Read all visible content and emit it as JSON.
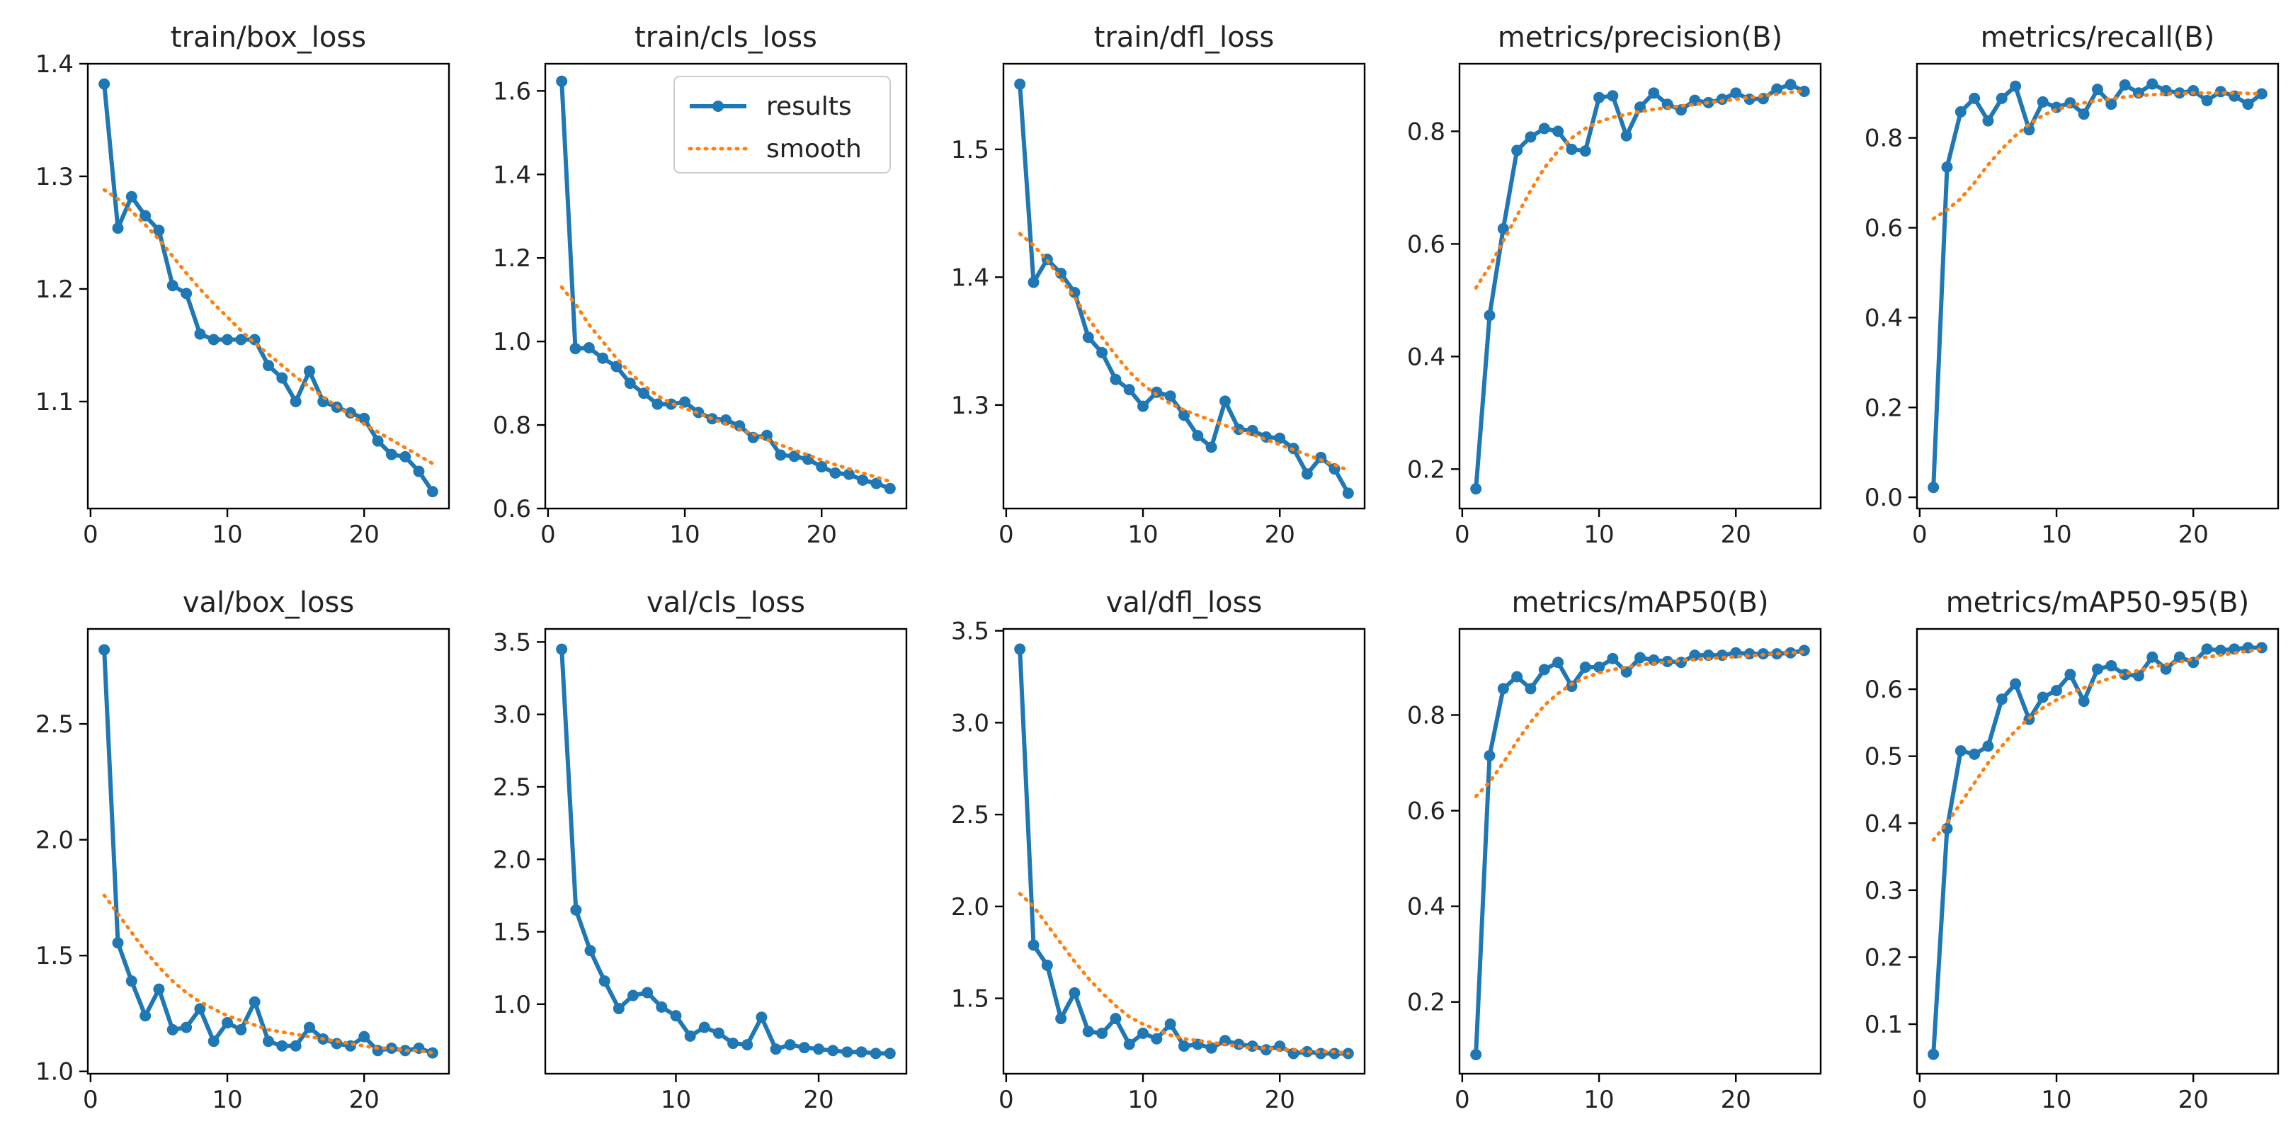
{
  "legend": {
    "results_label": "results",
    "smooth_label": "smooth",
    "results_color": "#1f77b4",
    "smooth_color": "#ff7f0e"
  },
  "chart_data": [
    {
      "type": "line",
      "title": "train/box_loss",
      "xlabel": "",
      "ylabel": "",
      "xlim": [
        -0.2,
        26.2
      ],
      "ylim": [
        1.005,
        1.4
      ],
      "xticks": [
        0,
        10,
        20
      ],
      "yticks": [
        1.1,
        1.2,
        1.3,
        1.4
      ],
      "ytick_labels": [
        "1.1",
        "1.2",
        "1.3",
        "1.4"
      ],
      "x": [
        1,
        2,
        3,
        4,
        5,
        6,
        7,
        8,
        9,
        10,
        11,
        12,
        13,
        14,
        15,
        16,
        17,
        18,
        19,
        20,
        21,
        22,
        23,
        24,
        25
      ],
      "series": [
        {
          "name": "results",
          "values": [
            1.382,
            1.254,
            1.282,
            1.265,
            1.252,
            1.203,
            1.196,
            1.16,
            1.155,
            1.155,
            1.155,
            1.155,
            1.132,
            1.121,
            1.1,
            1.127,
            1.1,
            1.095,
            1.09,
            1.085,
            1.065,
            1.053,
            1.051,
            1.038,
            1.02
          ]
        },
        {
          "name": "smooth",
          "values": [
            1.288,
            1.28,
            1.269,
            1.257,
            1.244,
            1.229,
            1.214,
            1.2,
            1.187,
            1.175,
            1.163,
            1.152,
            1.142,
            1.132,
            1.122,
            1.113,
            1.104,
            1.096,
            1.088,
            1.08,
            1.073,
            1.066,
            1.059,
            1.052,
            1.045
          ]
        }
      ]
    },
    {
      "type": "line",
      "title": "train/cls_loss",
      "xlabel": "",
      "ylabel": "",
      "xlim": [
        -0.2,
        26.2
      ],
      "ylim": [
        0.6,
        1.665
      ],
      "xticks": [
        0,
        10,
        20
      ],
      "yticks": [
        0.6,
        0.8,
        1.0,
        1.2,
        1.4,
        1.6
      ],
      "ytick_labels": [
        "0.6",
        "0.8",
        "1.0",
        "1.2",
        "1.4",
        "1.6"
      ],
      "x": [
        1,
        2,
        3,
        4,
        5,
        6,
        7,
        8,
        9,
        10,
        11,
        12,
        13,
        14,
        15,
        16,
        17,
        18,
        19,
        20,
        21,
        22,
        23,
        24,
        25
      ],
      "series": [
        {
          "name": "results",
          "values": [
            1.623,
            0.983,
            0.985,
            0.96,
            0.94,
            0.9,
            0.876,
            0.85,
            0.85,
            0.855,
            0.83,
            0.815,
            0.812,
            0.798,
            0.77,
            0.775,
            0.728,
            0.725,
            0.718,
            0.7,
            0.685,
            0.682,
            0.668,
            0.66,
            0.648
          ]
        },
        {
          "name": "smooth",
          "values": [
            1.13,
            1.09,
            1.04,
            1.0,
            0.96,
            0.925,
            0.895,
            0.87,
            0.852,
            0.84,
            0.828,
            0.815,
            0.803,
            0.79,
            0.778,
            0.765,
            0.752,
            0.74,
            0.728,
            0.716,
            0.705,
            0.695,
            0.685,
            0.675,
            0.665
          ]
        }
      ]
    },
    {
      "type": "line",
      "title": "train/dfl_loss",
      "xlabel": "",
      "ylabel": "",
      "xlim": [
        -0.2,
        26.2
      ],
      "ylim": [
        1.219,
        1.567
      ],
      "xticks": [
        0,
        10,
        20
      ],
      "yticks": [
        1.3,
        1.4,
        1.5
      ],
      "ytick_labels": [
        "1.3",
        "1.4",
        "1.5"
      ],
      "x": [
        1,
        2,
        3,
        4,
        5,
        6,
        7,
        8,
        9,
        10,
        11,
        12,
        13,
        14,
        15,
        16,
        17,
        18,
        19,
        20,
        21,
        22,
        23,
        24,
        25
      ],
      "series": [
        {
          "name": "results",
          "values": [
            1.551,
            1.396,
            1.414,
            1.403,
            1.388,
            1.353,
            1.341,
            1.32,
            1.312,
            1.299,
            1.31,
            1.307,
            1.292,
            1.276,
            1.267,
            1.303,
            1.281,
            1.28,
            1.275,
            1.274,
            1.266,
            1.246,
            1.259,
            1.25,
            1.231
          ]
        },
        {
          "name": "smooth",
          "values": [
            1.434,
            1.425,
            1.413,
            1.399,
            1.384,
            1.368,
            1.353,
            1.339,
            1.326,
            1.316,
            1.308,
            1.301,
            1.296,
            1.292,
            1.288,
            1.284,
            1.28,
            1.277,
            1.273,
            1.269,
            1.265,
            1.261,
            1.257,
            1.253,
            1.249
          ]
        }
      ]
    },
    {
      "type": "line",
      "title": "metrics/precision(B)",
      "xlabel": "",
      "ylabel": "",
      "xlim": [
        -0.2,
        26.2
      ],
      "ylim": [
        0.13,
        0.92
      ],
      "xticks": [
        0,
        10,
        20
      ],
      "yticks": [
        0.2,
        0.4,
        0.6,
        0.8
      ],
      "ytick_labels": [
        "0.2",
        "0.4",
        "0.6",
        "0.8"
      ],
      "x": [
        1,
        2,
        3,
        4,
        5,
        6,
        7,
        8,
        9,
        10,
        11,
        12,
        13,
        14,
        15,
        16,
        17,
        18,
        19,
        20,
        21,
        22,
        23,
        24,
        25
      ],
      "series": [
        {
          "name": "results",
          "values": [
            0.165,
            0.473,
            0.627,
            0.766,
            0.79,
            0.805,
            0.8,
            0.768,
            0.765,
            0.86,
            0.863,
            0.792,
            0.843,
            0.868,
            0.848,
            0.838,
            0.855,
            0.851,
            0.857,
            0.868,
            0.857,
            0.858,
            0.875,
            0.883,
            0.871
          ]
        },
        {
          "name": "smooth",
          "values": [
            0.522,
            0.56,
            0.605,
            0.65,
            0.695,
            0.735,
            0.765,
            0.788,
            0.805,
            0.817,
            0.825,
            0.83,
            0.835,
            0.839,
            0.842,
            0.845,
            0.848,
            0.851,
            0.854,
            0.857,
            0.86,
            0.863,
            0.866,
            0.869,
            0.872
          ]
        }
      ]
    },
    {
      "type": "line",
      "title": "metrics/recall(B)",
      "xlabel": "",
      "ylabel": "",
      "xlim": [
        -0.2,
        26.2
      ],
      "ylim": [
        -0.025,
        0.965
      ],
      "xticks": [
        0,
        10,
        20
      ],
      "yticks": [
        0.0,
        0.2,
        0.4,
        0.6,
        0.8
      ],
      "ytick_labels": [
        "0.0",
        "0.2",
        "0.4",
        "0.6",
        "0.8"
      ],
      "x": [
        1,
        2,
        3,
        4,
        5,
        6,
        7,
        8,
        9,
        10,
        11,
        12,
        13,
        14,
        15,
        16,
        17,
        18,
        19,
        20,
        21,
        22,
        23,
        24,
        25
      ],
      "series": [
        {
          "name": "results",
          "values": [
            0.022,
            0.735,
            0.858,
            0.888,
            0.838,
            0.888,
            0.915,
            0.818,
            0.88,
            0.868,
            0.878,
            0.853,
            0.908,
            0.875,
            0.918,
            0.9,
            0.92,
            0.905,
            0.9,
            0.905,
            0.883,
            0.903,
            0.893,
            0.875,
            0.898
          ]
        },
        {
          "name": "smooth",
          "values": [
            0.62,
            0.64,
            0.665,
            0.7,
            0.74,
            0.775,
            0.805,
            0.83,
            0.85,
            0.863,
            0.872,
            0.878,
            0.883,
            0.887,
            0.891,
            0.894,
            0.896,
            0.898,
            0.899,
            0.9,
            0.9,
            0.9,
            0.9,
            0.899,
            0.898
          ]
        }
      ]
    },
    {
      "type": "line",
      "title": "val/box_loss",
      "xlabel": "",
      "ylabel": "",
      "xlim": [
        -0.2,
        26.2
      ],
      "ylim": [
        0.99,
        2.91
      ],
      "xticks": [
        0,
        10,
        20
      ],
      "yticks": [
        1.0,
        1.5,
        2.0,
        2.5
      ],
      "ytick_labels": [
        "1.0",
        "1.5",
        "2.0",
        "2.5"
      ],
      "x": [
        1,
        2,
        3,
        4,
        5,
        6,
        7,
        8,
        9,
        10,
        11,
        12,
        13,
        14,
        15,
        16,
        17,
        18,
        19,
        20,
        21,
        22,
        23,
        24,
        25
      ],
      "series": [
        {
          "name": "results",
          "values": [
            2.82,
            1.555,
            1.39,
            1.24,
            1.355,
            1.18,
            1.19,
            1.27,
            1.13,
            1.21,
            1.18,
            1.3,
            1.13,
            1.11,
            1.11,
            1.19,
            1.14,
            1.12,
            1.11,
            1.15,
            1.09,
            1.1,
            1.09,
            1.1,
            1.08
          ]
        },
        {
          "name": "smooth",
          "values": [
            1.76,
            1.68,
            1.6,
            1.52,
            1.45,
            1.39,
            1.34,
            1.3,
            1.27,
            1.24,
            1.22,
            1.2,
            1.18,
            1.17,
            1.16,
            1.15,
            1.14,
            1.13,
            1.12,
            1.11,
            1.1,
            1.1,
            1.09,
            1.09,
            1.08
          ]
        }
      ]
    },
    {
      "type": "line",
      "title": "val/cls_loss",
      "xlabel": "",
      "ylabel": "",
      "xlim": [
        0.85,
        26.15
      ],
      "ylim": [
        0.52,
        3.59
      ],
      "xticks": [
        10,
        20
      ],
      "yticks": [
        1.0,
        1.5,
        2.0,
        2.5,
        3.0,
        3.5
      ],
      "ytick_labels": [
        "1.0",
        "1.5",
        "2.0",
        "2.5",
        "3.0",
        "3.5"
      ],
      "x": [
        2,
        3,
        4,
        5,
        6,
        7,
        8,
        9,
        10,
        11,
        12,
        13,
        14,
        15,
        16,
        17,
        18,
        19,
        20,
        21,
        22,
        23,
        24,
        25
      ],
      "series": [
        {
          "name": "results",
          "values": [
            3.45,
            1.65,
            1.37,
            1.16,
            0.97,
            1.06,
            1.08,
            0.98,
            0.92,
            0.78,
            0.84,
            0.8,
            0.73,
            0.72,
            0.91,
            0.69,
            0.72,
            0.7,
            0.69,
            0.68,
            0.67,
            0.67,
            0.66,
            0.66
          ]
        }
      ]
    },
    {
      "type": "line",
      "title": "val/dfl_loss",
      "xlabel": "",
      "ylabel": "",
      "xlim": [
        -0.2,
        26.2
      ],
      "ylim": [
        1.09,
        3.51
      ],
      "xticks": [
        0,
        10,
        20
      ],
      "yticks": [
        1.5,
        2.0,
        2.5,
        3.0,
        3.5
      ],
      "ytick_labels": [
        "1.5",
        "2.0",
        "2.5",
        "3.0",
        "3.5"
      ],
      "x": [
        1,
        2,
        3,
        4,
        5,
        6,
        7,
        8,
        9,
        10,
        11,
        12,
        13,
        14,
        15,
        16,
        17,
        18,
        19,
        20,
        21,
        22,
        23,
        24,
        25
      ],
      "series": [
        {
          "name": "results",
          "values": [
            3.4,
            1.79,
            1.68,
            1.39,
            1.53,
            1.32,
            1.31,
            1.39,
            1.25,
            1.31,
            1.28,
            1.36,
            1.24,
            1.25,
            1.23,
            1.27,
            1.25,
            1.24,
            1.22,
            1.24,
            1.2,
            1.21,
            1.2,
            1.2,
            1.2
          ]
        },
        {
          "name": "smooth",
          "values": [
            2.07,
            2.0,
            1.9,
            1.8,
            1.7,
            1.61,
            1.53,
            1.46,
            1.4,
            1.36,
            1.33,
            1.3,
            1.28,
            1.27,
            1.26,
            1.25,
            1.24,
            1.23,
            1.23,
            1.22,
            1.22,
            1.21,
            1.21,
            1.21,
            1.2
          ]
        }
      ]
    },
    {
      "type": "line",
      "title": "metrics/mAP50(B)",
      "xlabel": "",
      "ylabel": "",
      "xlim": [
        -0.2,
        26.2
      ],
      "ylim": [
        0.05,
        0.98
      ],
      "xticks": [
        0,
        10,
        20
      ],
      "yticks": [
        0.2,
        0.4,
        0.6,
        0.8
      ],
      "ytick_labels": [
        "0.2",
        "0.4",
        "0.6",
        "0.8"
      ],
      "x": [
        1,
        2,
        3,
        4,
        5,
        6,
        7,
        8,
        9,
        10,
        11,
        12,
        13,
        14,
        15,
        16,
        17,
        18,
        19,
        20,
        21,
        22,
        23,
        24,
        25
      ],
      "series": [
        {
          "name": "results",
          "values": [
            0.09,
            0.715,
            0.855,
            0.88,
            0.855,
            0.895,
            0.91,
            0.86,
            0.9,
            0.9,
            0.918,
            0.89,
            0.92,
            0.915,
            0.912,
            0.91,
            0.925,
            0.925,
            0.925,
            0.93,
            0.928,
            0.928,
            0.928,
            0.93,
            0.935
          ]
        },
        {
          "name": "smooth",
          "values": [
            0.63,
            0.66,
            0.7,
            0.745,
            0.785,
            0.82,
            0.845,
            0.865,
            0.878,
            0.888,
            0.895,
            0.9,
            0.905,
            0.908,
            0.911,
            0.914,
            0.916,
            0.918,
            0.92,
            0.922,
            0.924,
            0.926,
            0.928,
            0.93,
            0.932
          ]
        }
      ]
    },
    {
      "type": "line",
      "title": "metrics/mAP50-95(B)",
      "xlabel": "",
      "ylabel": "",
      "xlim": [
        -0.2,
        26.2
      ],
      "ylim": [
        0.026,
        0.69
      ],
      "xticks": [
        0,
        10,
        20
      ],
      "yticks": [
        0.1,
        0.2,
        0.3,
        0.4,
        0.5,
        0.6
      ],
      "ytick_labels": [
        "0.1",
        "0.2",
        "0.3",
        "0.4",
        "0.5",
        "0.6"
      ],
      "x": [
        1,
        2,
        3,
        4,
        5,
        6,
        7,
        8,
        9,
        10,
        11,
        12,
        13,
        14,
        15,
        16,
        17,
        18,
        19,
        20,
        21,
        22,
        23,
        24,
        25
      ],
      "series": [
        {
          "name": "results",
          "values": [
            0.055,
            0.392,
            0.508,
            0.503,
            0.515,
            0.585,
            0.608,
            0.555,
            0.588,
            0.598,
            0.622,
            0.582,
            0.63,
            0.635,
            0.622,
            0.62,
            0.648,
            0.63,
            0.648,
            0.64,
            0.66,
            0.658,
            0.66,
            0.662,
            0.662
          ]
        },
        {
          "name": "smooth",
          "values": [
            0.375,
            0.4,
            0.43,
            0.46,
            0.49,
            0.515,
            0.538,
            0.557,
            0.572,
            0.584,
            0.594,
            0.602,
            0.61,
            0.617,
            0.623,
            0.628,
            0.633,
            0.637,
            0.641,
            0.645,
            0.648,
            0.651,
            0.654,
            0.657,
            0.66
          ]
        }
      ]
    }
  ]
}
